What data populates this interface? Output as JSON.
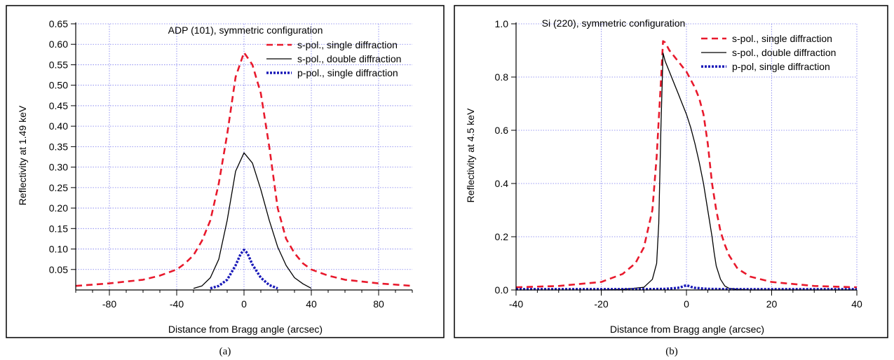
{
  "chart_data": [
    {
      "type": "line",
      "title": "ADP (101), symmetric configuration",
      "xlabel": "Distance from Bragg angle (arcsec)",
      "ylabel": "Reflectivity at 1.49 keV",
      "caption": "(a)",
      "xlim": [
        -100,
        100
      ],
      "ylim": [
        0,
        0.65
      ],
      "xticks": [
        -80,
        -40,
        0,
        40,
        80
      ],
      "xtick_labels": [
        "-80",
        "-40",
        "0",
        "40",
        "80"
      ],
      "yticks": [
        0.05,
        0.1,
        0.15,
        0.2,
        0.25,
        0.3,
        0.35,
        0.4,
        0.45,
        0.5,
        0.55,
        0.6,
        0.65
      ],
      "ytick_labels": [
        "0.05",
        "0.10",
        "0.15",
        "0.20",
        "0.25",
        "0.30",
        "0.35",
        "0.40",
        "0.45",
        "0.50",
        "0.55",
        "0.60",
        "0.65"
      ],
      "grid": true,
      "legend_position": "top-right",
      "series": [
        {
          "name": "s-pol., single diffraction",
          "color": "#e8192c",
          "style": "dashed",
          "x": [
            -100,
            -80,
            -60,
            -50,
            -40,
            -35,
            -30,
            -25,
            -20,
            -15,
            -10,
            -5,
            0,
            5,
            10,
            15,
            20,
            25,
            30,
            35,
            40,
            50,
            60,
            80,
            100
          ],
          "y": [
            0.01,
            0.016,
            0.025,
            0.035,
            0.05,
            0.065,
            0.085,
            0.12,
            0.17,
            0.26,
            0.38,
            0.52,
            0.58,
            0.55,
            0.48,
            0.35,
            0.2,
            0.125,
            0.09,
            0.065,
            0.05,
            0.035,
            0.025,
            0.016,
            0.01
          ]
        },
        {
          "name": "s-pol., double diffraction",
          "color": "#000000",
          "style": "solid",
          "x": [
            -30,
            -25,
            -20,
            -15,
            -10,
            -5,
            0,
            5,
            10,
            15,
            20,
            25,
            30,
            35,
            40
          ],
          "y": [
            0.004,
            0.01,
            0.03,
            0.075,
            0.17,
            0.29,
            0.335,
            0.31,
            0.245,
            0.17,
            0.105,
            0.06,
            0.03,
            0.015,
            0.004
          ]
        },
        {
          "name": "p-pol., single diffraction",
          "color": "#1a1ab8",
          "style": "dotted",
          "x": [
            -20,
            -15,
            -10,
            -5,
            -2,
            0,
            2,
            5,
            10,
            15,
            20
          ],
          "y": [
            0.004,
            0.01,
            0.025,
            0.06,
            0.088,
            0.098,
            0.09,
            0.062,
            0.03,
            0.012,
            0.004
          ]
        }
      ]
    },
    {
      "type": "line",
      "title": "Si (220), symmetric configuration",
      "xlabel": "Distance from Bragg angle (arcsec)",
      "ylabel": "Reflectivity at 4.5 keV",
      "caption": "(b)",
      "xlim": [
        -40,
        40
      ],
      "ylim": [
        0,
        1.0
      ],
      "xticks": [
        -40,
        -20,
        0,
        20,
        40
      ],
      "xtick_labels": [
        "-40",
        "-20",
        "0",
        "20",
        "40"
      ],
      "yticks": [
        0.0,
        0.2,
        0.4,
        0.6,
        0.8,
        1.0
      ],
      "ytick_labels": [
        "0.0",
        "0.2",
        "0.4",
        "0.6",
        "0.8",
        "1.0"
      ],
      "grid": true,
      "legend_position": "top-right",
      "series": [
        {
          "name": "s-pol., single diffraction",
          "color": "#e8192c",
          "style": "dashed",
          "x": [
            -40,
            -30,
            -20,
            -15,
            -12,
            -10,
            -8,
            -7,
            -6,
            -5.5,
            -5,
            -4,
            -3,
            -2,
            -1,
            0,
            1,
            2,
            3,
            4,
            5,
            6,
            7,
            8,
            9,
            10,
            12,
            15,
            20,
            30,
            40
          ],
          "y": [
            0.01,
            0.015,
            0.03,
            0.06,
            0.1,
            0.16,
            0.3,
            0.5,
            0.78,
            0.935,
            0.93,
            0.9,
            0.88,
            0.86,
            0.84,
            0.82,
            0.79,
            0.76,
            0.72,
            0.66,
            0.55,
            0.4,
            0.3,
            0.22,
            0.17,
            0.13,
            0.08,
            0.05,
            0.03,
            0.015,
            0.01
          ]
        },
        {
          "name": "s-pol., double diffraction",
          "color": "#000000",
          "style": "solid",
          "x": [
            -20,
            -15,
            -10,
            -8,
            -7,
            -6.5,
            -6,
            -5.5,
            -5,
            -4,
            -3,
            -2,
            -1,
            0,
            1,
            2,
            3,
            4,
            5,
            6,
            6.5,
            7,
            8,
            9,
            10,
            12,
            15,
            20,
            40
          ],
          "y": [
            0.0,
            0.002,
            0.01,
            0.04,
            0.1,
            0.25,
            0.6,
            0.89,
            0.86,
            0.82,
            0.78,
            0.74,
            0.7,
            0.66,
            0.61,
            0.55,
            0.48,
            0.4,
            0.3,
            0.2,
            0.14,
            0.09,
            0.04,
            0.015,
            0.006,
            0.002,
            0.0,
            0.0,
            0.0
          ]
        },
        {
          "name": "p-pol, single diffraction",
          "color": "#1a1ab8",
          "style": "dotted",
          "x": [
            -40,
            -10,
            -5,
            -2,
            -1,
            0,
            1,
            2,
            5,
            10,
            40
          ],
          "y": [
            0.003,
            0.003,
            0.004,
            0.008,
            0.012,
            0.018,
            0.012,
            0.008,
            0.004,
            0.003,
            0.003
          ]
        }
      ]
    }
  ]
}
